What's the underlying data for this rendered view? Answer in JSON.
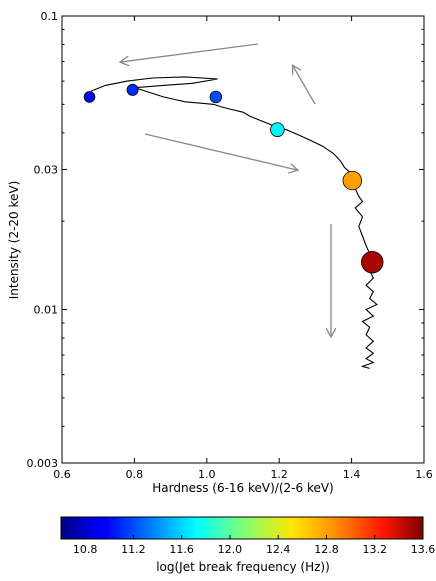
{
  "chart_data": {
    "type": "scatter",
    "x_axis": {
      "label": "Hardness (6-16 keV)/(2-6 keV)",
      "lim": [
        0.6,
        1.6
      ],
      "ticks": [
        0.6,
        0.8,
        1.0,
        1.2,
        1.4,
        1.6
      ],
      "tick_labels": [
        "0.6",
        "0.8",
        "1.0",
        "1.2",
        "1.4",
        "1.6"
      ]
    },
    "y_axis": {
      "label": "Intensity (2-20 keV)",
      "scale": "log",
      "lim": [
        0.003,
        0.1
      ],
      "ticks": [
        0.003,
        0.01,
        0.03,
        0.1
      ],
      "tick_labels": [
        "0.003",
        "0.01",
        "0.03",
        "0.1"
      ]
    },
    "track": [
      [
        1.45,
        0.0063
      ],
      [
        1.43,
        0.0064
      ],
      [
        1.46,
        0.0066
      ],
      [
        1.44,
        0.0068
      ],
      [
        1.46,
        0.0071
      ],
      [
        1.44,
        0.0074
      ],
      [
        1.46,
        0.0078
      ],
      [
        1.44,
        0.0082
      ],
      [
        1.45,
        0.0087
      ],
      [
        1.43,
        0.0091
      ],
      [
        1.46,
        0.0095
      ],
      [
        1.44,
        0.01
      ],
      [
        1.47,
        0.0104
      ],
      [
        1.45,
        0.0109
      ],
      [
        1.46,
        0.0115
      ],
      [
        1.44,
        0.0121
      ],
      [
        1.46,
        0.0128
      ],
      [
        1.45,
        0.0136
      ],
      [
        1.46,
        0.0145
      ],
      [
        1.45,
        0.0155
      ],
      [
        1.44,
        0.0165
      ],
      [
        1.43,
        0.0178
      ],
      [
        1.42,
        0.0192
      ],
      [
        1.43,
        0.0207
      ],
      [
        1.41,
        0.0222
      ],
      [
        1.43,
        0.0233
      ],
      [
        1.42,
        0.0243
      ],
      [
        1.41,
        0.0258
      ],
      [
        1.4,
        0.027
      ],
      [
        1.4,
        0.029
      ],
      [
        1.38,
        0.0305
      ],
      [
        1.37,
        0.032
      ],
      [
        1.35,
        0.034
      ],
      [
        1.32,
        0.036
      ],
      [
        1.29,
        0.0375
      ],
      [
        1.26,
        0.039
      ],
      [
        1.22,
        0.041
      ],
      [
        1.2,
        0.0415
      ],
      [
        1.18,
        0.0425
      ],
      [
        1.15,
        0.044
      ],
      [
        1.12,
        0.0455
      ],
      [
        1.1,
        0.047
      ],
      [
        1.07,
        0.048
      ],
      [
        1.04,
        0.049
      ],
      [
        1.02,
        0.05
      ],
      [
        0.98,
        0.0505
      ],
      [
        0.94,
        0.051
      ],
      [
        0.91,
        0.052
      ],
      [
        0.88,
        0.053
      ],
      [
        0.85,
        0.0545
      ],
      [
        0.82,
        0.056
      ],
      [
        0.8,
        0.057
      ],
      [
        0.88,
        0.058
      ],
      [
        0.96,
        0.059
      ],
      [
        1.03,
        0.061
      ],
      [
        0.94,
        0.062
      ],
      [
        0.85,
        0.0615
      ],
      [
        0.78,
        0.06
      ],
      [
        0.72,
        0.058
      ],
      [
        0.68,
        0.0555
      ]
    ],
    "points": [
      {
        "x": 0.676,
        "y": 0.053,
        "log_frequency": 11.0
      },
      {
        "x": 0.795,
        "y": 0.056,
        "log_frequency": 11.1
      },
      {
        "x": 1.025,
        "y": 0.053,
        "log_frequency": 11.2
      },
      {
        "x": 1.195,
        "y": 0.041,
        "log_frequency": 11.7
      },
      {
        "x": 1.402,
        "y": 0.0275,
        "log_frequency": 12.8
      },
      {
        "x": 1.457,
        "y": 0.0145,
        "log_frequency": 13.5
      }
    ],
    "colorbar": {
      "label": "log(Jet break frequency (Hz))",
      "range": [
        10.6,
        13.6
      ],
      "ticks": [
        10.8,
        11.2,
        11.6,
        12.0,
        12.4,
        12.8,
        13.2,
        13.6
      ],
      "tick_labels": [
        "10.8",
        "11.2",
        "11.6",
        "12.0",
        "12.4",
        "12.8",
        "13.2",
        "13.6"
      ]
    }
  }
}
